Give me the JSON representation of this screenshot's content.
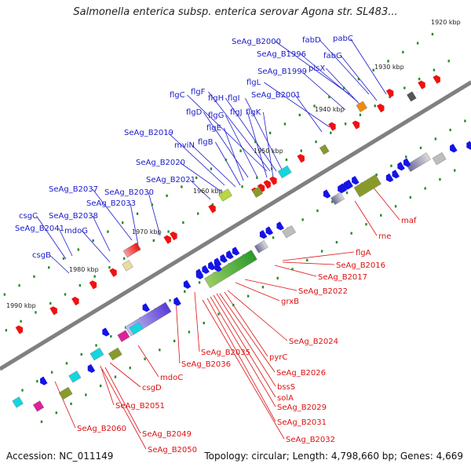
{
  "title": "Salmonella enterica subsp. enterica serovar Agona str. SL483...",
  "footer": {
    "accession": "Accession: NC_011149",
    "summary": "Topology: circular; Length: 4,798,660 bp; Genes: 4,669"
  },
  "colors": {
    "forward_label": "#1a1acc",
    "reverse_label": "#dd1111",
    "backbone": "#808080",
    "tick_mark": "#2a8a2a"
  },
  "ticks": [
    "1920 kbp",
    "1930 kbp",
    "1940 kbp",
    "1950 kbp",
    "1960 kbp",
    "1970 kbp",
    "1980 kbp",
    "1990 kbp"
  ],
  "forward_labels": [
    "SeAg_B2000",
    "fabD",
    "pabC",
    "SeAg_B1996",
    "fabG",
    "plsX",
    "SeAg_B1999",
    "flgL",
    "SeAg_B2001",
    "flgC",
    "flgF",
    "flgH",
    "flgI",
    "flgD",
    "flgG",
    "flgJ",
    "flgK",
    "flgE",
    "SeAg_B2019",
    "mviN",
    "flgB",
    "SeAg_B2020",
    "SeAg_B2021",
    "SeAg_B2037",
    "SeAg_B2030",
    "SeAg_B2033",
    "csgC",
    "SeAg_B2038",
    "SeAg_B2041",
    "mdoG",
    "csgB"
  ],
  "reverse_labels": [
    "maf",
    "rne",
    "flgA",
    "SeAg_B2016",
    "SeAg_B2017",
    "SeAg_B2022",
    "grxB",
    "SeAg_B2024",
    "SeAg_B2035",
    "pyrC",
    "SeAg_B2036",
    "SeAg_B2026",
    "mdoC",
    "bssS",
    "csgD",
    "solA",
    "SeAg_B2051",
    "SeAg_B2029",
    "SeAg_B2031",
    "SeAg_B2032",
    "SeAg_B2060",
    "SeAg_B2049",
    "SeAg_B2050"
  ]
}
